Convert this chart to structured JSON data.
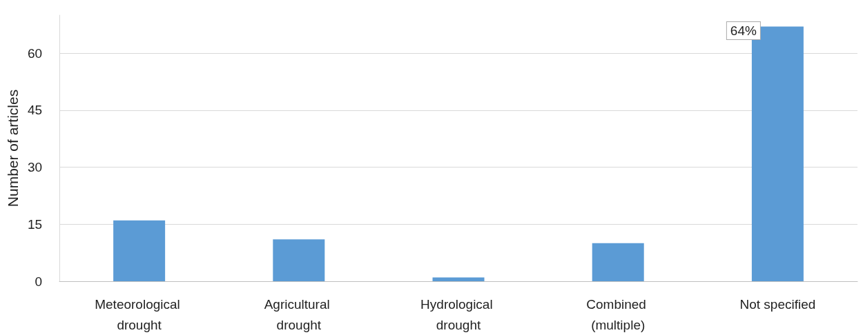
{
  "chart_data": {
    "type": "bar",
    "ylabel": "Number of articles",
    "categories": [
      "Meteorological drought",
      "Agricultural drought",
      "Hydrological drought",
      "Combined (multiple)",
      "Not specified"
    ],
    "values": [
      16,
      11,
      1,
      10,
      67
    ],
    "color": "#5b9bd5",
    "ylim": [
      0,
      70
    ],
    "yticks": [
      0,
      15,
      30,
      45,
      60
    ],
    "grid": "y",
    "annotations": [
      {
        "text": "64%",
        "x": "Not specified",
        "y": 67
      }
    ]
  }
}
